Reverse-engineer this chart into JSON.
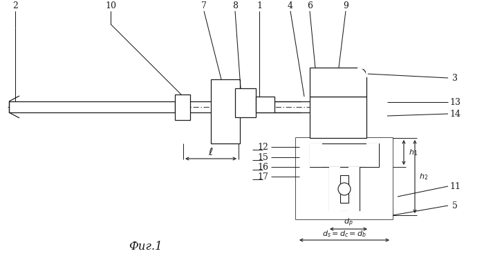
{
  "bg": "#ffffff",
  "lc": "#1a1a1a",
  "fig_w": 7.0,
  "fig_h": 3.74,
  "dpi": 100
}
